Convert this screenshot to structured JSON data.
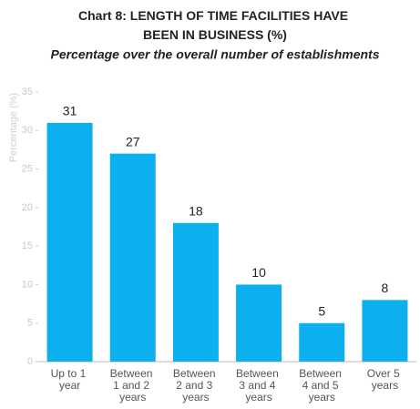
{
  "chart_data": {
    "type": "bar",
    "title": "Chart 8: LENGTH OF TIME FACILITIES HAVE BEEN IN BUSINESS (%)",
    "subtitle": "Percentage over the overall number of establishments",
    "y_label": "Percentage (%)",
    "categories": [
      "Up to 1 year",
      "Between 1 and 2 years",
      "Between 2 and 3 years",
      "Between 3 and 4 years",
      "Between 4 and 5 years",
      "Over 5 years"
    ],
    "values": [
      31,
      27,
      18,
      10,
      5,
      8
    ],
    "color": "#0db0ee",
    "ylim": [
      0,
      35
    ],
    "yticks": [
      0,
      5,
      10,
      15,
      20,
      25,
      30,
      35
    ],
    "grid": false
  }
}
